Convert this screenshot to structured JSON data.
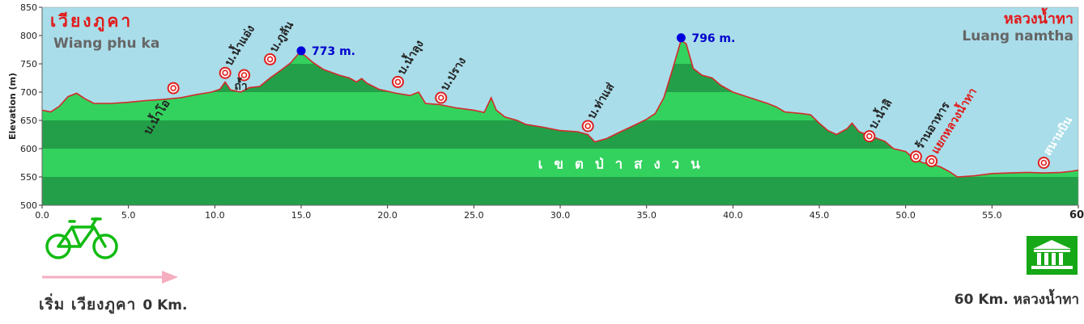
{
  "chart_data": {
    "type": "area",
    "xlabel": "",
    "ylabel": "Elevation (m)",
    "xlim": [
      0,
      60
    ],
    "ylim": [
      500,
      850
    ],
    "x_ticks": [
      "0.0",
      "5.0",
      "10.0",
      "15.0",
      "20.0",
      "25.0",
      "30.0",
      "35.0",
      "40.0",
      "45.0",
      "50.0",
      "55.0",
      "60"
    ],
    "y_ticks": [
      "500",
      "550",
      "600",
      "650",
      "700",
      "750",
      "800",
      "850"
    ],
    "band_step": 50,
    "colors": {
      "sky": "#a9dde9",
      "band_dark": "#249f49",
      "band_light": "#33d25e",
      "profile": "#d42a2a",
      "peak_dot": "#0000dd",
      "peak_text": "#0000cc",
      "title_th": "#e21a1a",
      "title_en": "#666666",
      "place": "#222222",
      "place_light": "#ffffff",
      "target": "#e02020",
      "zone_text": "#ffffff",
      "bike": "#11bb11",
      "arrow": "#f4aec0",
      "building": "#16a816"
    },
    "series": [
      {
        "values": [
          [
            0,
            668
          ],
          [
            0.5,
            665
          ],
          [
            1,
            675
          ],
          [
            1.5,
            692
          ],
          [
            2,
            698
          ],
          [
            2.5,
            688
          ],
          [
            3,
            680
          ],
          [
            4,
            680
          ],
          [
            5,
            682
          ],
          [
            6,
            685
          ],
          [
            7,
            687
          ],
          [
            8,
            690
          ],
          [
            9,
            696
          ],
          [
            9.8,
            700
          ],
          [
            10.3,
            705
          ],
          [
            10.6,
            718
          ],
          [
            10.9,
            704
          ],
          [
            11.5,
            700
          ],
          [
            12,
            708
          ],
          [
            12.6,
            710
          ],
          [
            13.2,
            725
          ],
          [
            13.8,
            738
          ],
          [
            14.4,
            752
          ],
          [
            14.9,
            770
          ],
          [
            15.2,
            765
          ],
          [
            15.7,
            752
          ],
          [
            16.3,
            740
          ],
          [
            17.2,
            730
          ],
          [
            17.8,
            725
          ],
          [
            18.2,
            718
          ],
          [
            18.5,
            724
          ],
          [
            18.8,
            716
          ],
          [
            19.5,
            705
          ],
          [
            20.5,
            698
          ],
          [
            21.3,
            694
          ],
          [
            21.8,
            700
          ],
          [
            22.2,
            680
          ],
          [
            23,
            678
          ],
          [
            24,
            672
          ],
          [
            25,
            668
          ],
          [
            25.6,
            664
          ],
          [
            26,
            690
          ],
          [
            26.3,
            668
          ],
          [
            26.8,
            656
          ],
          [
            27.5,
            650
          ],
          [
            28,
            643
          ],
          [
            29,
            638
          ],
          [
            30,
            632
          ],
          [
            31,
            630
          ],
          [
            31.6,
            625
          ],
          [
            32,
            612
          ],
          [
            32.7,
            618
          ],
          [
            33.5,
            630
          ],
          [
            34.2,
            640
          ],
          [
            35,
            652
          ],
          [
            35.5,
            662
          ],
          [
            36,
            690
          ],
          [
            36.5,
            740
          ],
          [
            37,
            792
          ],
          [
            37.3,
            785
          ],
          [
            37.7,
            742
          ],
          [
            38.2,
            730
          ],
          [
            38.8,
            725
          ],
          [
            39.3,
            712
          ],
          [
            40,
            700
          ],
          [
            41,
            690
          ],
          [
            42,
            680
          ],
          [
            42.5,
            674
          ],
          [
            43,
            665
          ],
          [
            44,
            662
          ],
          [
            44.5,
            660
          ],
          [
            45,
            645
          ],
          [
            45.5,
            632
          ],
          [
            46,
            625
          ],
          [
            46.6,
            635
          ],
          [
            46.9,
            645
          ],
          [
            47.3,
            630
          ],
          [
            48,
            622
          ],
          [
            48.8,
            613
          ],
          [
            49.3,
            600
          ],
          [
            50,
            595
          ],
          [
            50.5,
            582
          ],
          [
            51,
            575
          ],
          [
            51.5,
            572
          ],
          [
            52,
            568
          ],
          [
            52.5,
            560
          ],
          [
            53,
            550
          ],
          [
            54,
            552
          ],
          [
            55,
            556
          ],
          [
            56,
            557
          ],
          [
            57,
            558
          ],
          [
            58,
            557
          ],
          [
            59,
            558
          ],
          [
            59.6,
            560
          ],
          [
            60,
            562
          ]
        ]
      }
    ],
    "peaks": [
      {
        "x": 15.0,
        "y": 773,
        "label": "773 m."
      },
      {
        "x": 37.0,
        "y": 796,
        "label": "796 m."
      }
    ],
    "places": [
      {
        "x": 7.6,
        "y": 707,
        "label": "บ.น้ำโอ"
      },
      {
        "x": 10.6,
        "y": 734,
        "label": "บ.น้ำแอ่ง"
      },
      {
        "x": 11.7,
        "y": 730,
        "label": "ถ้ำ"
      },
      {
        "x": 13.2,
        "y": 758,
        "label": "บ.ภูลัน"
      },
      {
        "x": 20.6,
        "y": 718,
        "label": "บ.น้ำลุง"
      },
      {
        "x": 23.1,
        "y": 690,
        "label": "บ.ปราง"
      },
      {
        "x": 31.6,
        "y": 640,
        "label": "บ.ท่าแส่"
      },
      {
        "x": 47.9,
        "y": 622,
        "label": "บ.น้ำลิ"
      },
      {
        "x": 50.6,
        "y": 586,
        "label": "ร้านอาหาร"
      },
      {
        "x": 51.5,
        "y": 578,
        "label": "แยกหลวงน้ำทา"
      },
      {
        "x": 58.0,
        "y": 575,
        "label": "สนามบิน"
      }
    ],
    "zone_label": "เ ข ต ป่ า ส ง ว น",
    "start": {
      "th": "เวียงภูคา",
      "en": "Wiang phu ka"
    },
    "end": {
      "th": "หลวงน้ำทา",
      "en": "Luang namtha"
    }
  },
  "captions": {
    "start_th": "เริ่ม เวียงภูคา",
    "start_km": "0 Km.",
    "end": "60 Km. หลวงน้ำทา"
  }
}
